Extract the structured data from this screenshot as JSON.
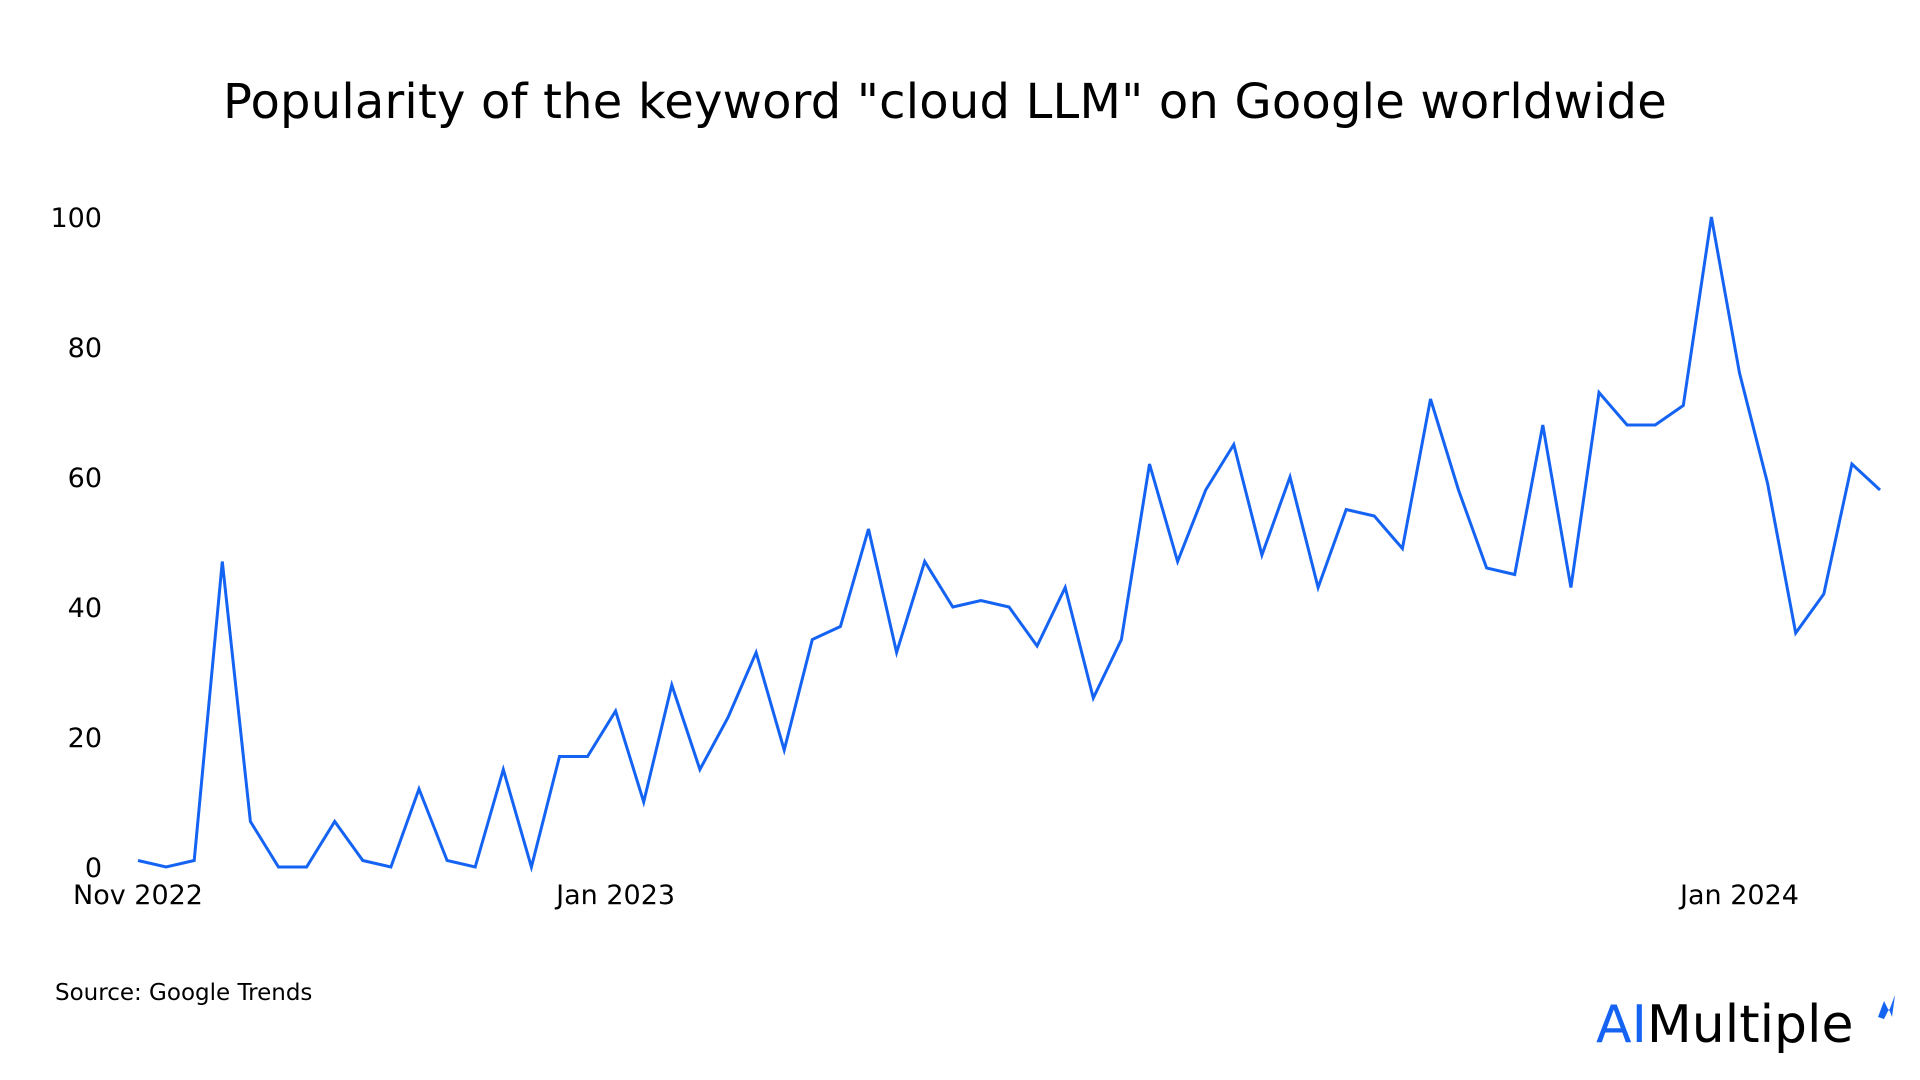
{
  "title": "Popularity of the keyword \"cloud LLM\" on Google worldwide",
  "source": "Source: Google Trends",
  "logo": {
    "part1": "AI",
    "part2": "Multiple",
    "accent_color": "#1463f3"
  },
  "colors": {
    "line": "#1463f3",
    "text": "#000000",
    "background": "#ffffff"
  },
  "chart_data": {
    "type": "line",
    "title": "Popularity of the keyword \"cloud LLM\" on Google worldwide",
    "xlabel": "",
    "ylabel": "",
    "ylim": [
      0,
      100
    ],
    "yticks": [
      0,
      20,
      40,
      60,
      80,
      100
    ],
    "xtick_labels": [
      {
        "label": "Nov 2022",
        "index": 0
      },
      {
        "label": "Jan 2023",
        "index": 17
      },
      {
        "label": "Jan 2024",
        "index": 57
      }
    ],
    "grid": false,
    "legend": "none",
    "series": [
      {
        "values": [
          1,
          0,
          1,
          47,
          7,
          0,
          0,
          7,
          1,
          0,
          12,
          1,
          0,
          15,
          0,
          17,
          17,
          24,
          10,
          28,
          15,
          23,
          33,
          18,
          35,
          37,
          52,
          33,
          47,
          40,
          41,
          40,
          34,
          43,
          26,
          35,
          62,
          47,
          58,
          65,
          48,
          60,
          43,
          55,
          54,
          49,
          72,
          58,
          46,
          45,
          68,
          43,
          73,
          68,
          68,
          71,
          100,
          76,
          59,
          36,
          42,
          62,
          58
        ]
      }
    ]
  }
}
